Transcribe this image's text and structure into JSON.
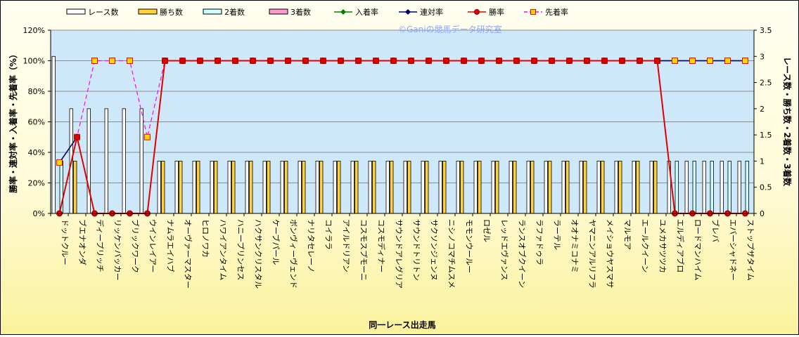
{
  "watermark": "©Ganiの競馬データ研究室",
  "legend": [
    {
      "key": "races",
      "label": "レース数",
      "symbol": "bar",
      "fill": "#ffffff",
      "stroke": "#000000"
    },
    {
      "key": "wins",
      "label": "勝ち数",
      "symbol": "bar",
      "fill": "#ffd23c",
      "stroke": "#000000"
    },
    {
      "key": "seconds",
      "label": "2着数",
      "symbol": "bar",
      "fill": "#ccffff",
      "stroke": "#000000"
    },
    {
      "key": "thirds",
      "label": "3着数",
      "symbol": "bar",
      "fill": "#ff99cc",
      "stroke": "#000000"
    },
    {
      "key": "place_rate",
      "label": "入着率",
      "symbol": "line",
      "color": "#008000",
      "marker": "diamond"
    },
    {
      "key": "quinella_rate",
      "label": "連対率",
      "symbol": "line",
      "color": "#000080",
      "marker": "diamond"
    },
    {
      "key": "win_rate",
      "label": "勝率",
      "symbol": "line",
      "color": "#e00000",
      "marker": "circle"
    },
    {
      "key": "lead_rate",
      "label": "先着率",
      "symbol": "dashline",
      "color": "#ff00ff",
      "marker": "square"
    }
  ],
  "chart_data": {
    "type": "bar",
    "xlabel": "同一レース出走馬",
    "ylabel_left": "勝率・連対率・入着率・先着率（%）",
    "ylabel_right": "レース数・勝ち数・2着数・3着数",
    "ylim_left": [
      0,
      120
    ],
    "ylim_right": [
      0,
      3.5
    ],
    "yticks_left": [
      "0%",
      "20%",
      "40%",
      "60%",
      "80%",
      "100%",
      "120%"
    ],
    "yticks_right": [
      "0",
      "0.5",
      "1",
      "1.5",
      "2",
      "2.5",
      "3",
      "3.5"
    ],
    "grid": true,
    "legend_position": "top",
    "categories": [
      "ドットクルー",
      "ブエナオンダ",
      "ディープリッチ",
      "リッケンバッカー",
      "ブリックワーク",
      "ウインレイアー",
      "ナムラエイハブ",
      "オーヴァーマスター",
      "ヒロノワカ",
      "ハワイアンタイム",
      "ハニープリンセス",
      "ハクサンクリスタル",
      "ケーブパール",
      "ボンヴィーヴェンド",
      "ナリタセレーノ",
      "コイララ",
      "アイルドリアン",
      "コスモスプモーニ",
      "コスモディナー",
      "サウンドアレグリア",
      "サウンドトリトン",
      "サクソンジェンヌ",
      "ニシノコマチムスメ",
      "モモンウールー",
      "ロゼル",
      "レッドエヴァンス",
      "ランスオブクイーン",
      "ラファドゥラ",
      "ラーテル",
      "オオナミコナミ",
      "ヤマニンアルリフラ",
      "メイショウヤスマサ",
      "マルモア",
      "エールクイーン",
      "ユメカサツツカ",
      "エルディアブロ",
      "ロードマンハイム",
      "ブレバ",
      "エバーシャドネー",
      "ストップザタイム"
    ],
    "series": [
      {
        "name": "レース数",
        "kind": "bar",
        "values": [
          3,
          2,
          2,
          2,
          2,
          2,
          1,
          1,
          1,
          1,
          1,
          1,
          1,
          1,
          1,
          1,
          1,
          1,
          1,
          1,
          1,
          1,
          1,
          1,
          1,
          1,
          1,
          1,
          1,
          1,
          1,
          1,
          1,
          1,
          1,
          1,
          1,
          1,
          1,
          1
        ]
      },
      {
        "name": "勝ち数",
        "kind": "bar",
        "values": [
          0,
          1,
          0,
          0,
          0,
          0,
          1,
          1,
          1,
          1,
          1,
          1,
          1,
          1,
          1,
          1,
          1,
          1,
          1,
          1,
          1,
          1,
          1,
          1,
          1,
          1,
          1,
          1,
          1,
          1,
          1,
          1,
          1,
          1,
          1,
          0,
          0,
          0,
          0,
          0
        ]
      },
      {
        "name": "2着数",
        "kind": "bar",
        "values": [
          1,
          0,
          0,
          0,
          0,
          0,
          0,
          0,
          0,
          0,
          0,
          0,
          0,
          0,
          0,
          0,
          0,
          0,
          0,
          0,
          0,
          0,
          0,
          0,
          0,
          0,
          0,
          0,
          0,
          0,
          0,
          0,
          0,
          0,
          0,
          1,
          1,
          1,
          1,
          1
        ]
      },
      {
        "name": "3着数",
        "kind": "bar",
        "values": [
          0,
          0,
          0,
          0,
          0,
          0,
          0,
          0,
          0,
          0,
          0,
          0,
          0,
          0,
          0,
          0,
          0,
          0,
          0,
          0,
          0,
          0,
          0,
          0,
          0,
          0,
          0,
          0,
          0,
          0,
          0,
          0,
          0,
          0,
          0,
          0,
          0,
          0,
          0,
          0
        ]
      },
      {
        "name": "入着率",
        "kind": "line",
        "values": [
          33.3,
          50,
          null,
          null,
          null,
          null,
          100,
          100,
          100,
          100,
          100,
          100,
          100,
          100,
          100,
          100,
          100,
          100,
          100,
          100,
          100,
          100,
          100,
          100,
          100,
          100,
          100,
          100,
          100,
          100,
          100,
          100,
          100,
          100,
          100,
          100,
          100,
          100,
          100,
          100
        ]
      },
      {
        "name": "連対率",
        "kind": "line",
        "values": [
          33.3,
          50,
          null,
          null,
          null,
          null,
          100,
          100,
          100,
          100,
          100,
          100,
          100,
          100,
          100,
          100,
          100,
          100,
          100,
          100,
          100,
          100,
          100,
          100,
          100,
          100,
          100,
          100,
          100,
          100,
          100,
          100,
          100,
          100,
          100,
          100,
          100,
          100,
          100,
          100
        ]
      },
      {
        "name": "勝率",
        "kind": "line",
        "values": [
          0,
          50,
          0,
          0,
          0,
          0,
          100,
          100,
          100,
          100,
          100,
          100,
          100,
          100,
          100,
          100,
          100,
          100,
          100,
          100,
          100,
          100,
          100,
          100,
          100,
          100,
          100,
          100,
          100,
          100,
          100,
          100,
          100,
          100,
          100,
          0,
          0,
          0,
          0,
          0
        ]
      },
      {
        "name": "先着率",
        "kind": "dashline",
        "values": [
          33.3,
          50,
          100,
          100,
          100,
          50,
          100,
          100,
          100,
          100,
          100,
          100,
          100,
          100,
          100,
          100,
          100,
          100,
          100,
          100,
          100,
          100,
          100,
          100,
          100,
          100,
          100,
          100,
          100,
          100,
          100,
          100,
          100,
          100,
          100,
          100,
          100,
          100,
          100,
          100
        ]
      }
    ]
  }
}
